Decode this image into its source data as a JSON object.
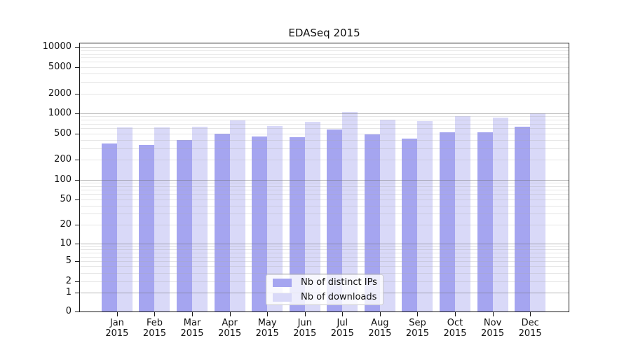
{
  "title": "EDASeq 2015",
  "chart_data": {
    "type": "bar",
    "title": "EDASeq 2015",
    "yscale": "log10(1+x)",
    "ylim": [
      0,
      10000
    ],
    "grid": "horizontal major (powers of 10) + minor (2-9 per decade)",
    "legend_position": "inside plot, lower center",
    "categories": [
      "Jan",
      "Feb",
      "Mar",
      "Apr",
      "May",
      "Jun",
      "Jul",
      "Aug",
      "Sep",
      "Oct",
      "Nov",
      "Dec"
    ],
    "year": "2015",
    "yticks": [
      10000,
      5000,
      2000,
      1000,
      500,
      200,
      100,
      50,
      20,
      10,
      5,
      2,
      1,
      0
    ],
    "series": [
      {
        "name": "Nb of distinct IPs",
        "color": "#a5a5f0",
        "values": [
          350,
          332,
          400,
          495,
          450,
          440,
          570,
          480,
          420,
          525,
          522,
          635
        ]
      },
      {
        "name": "Nb of downloads",
        "color": "#d9d9f8",
        "values": [
          620,
          610,
          625,
          795,
          655,
          755,
          1050,
          800,
          765,
          900,
          860,
          1010
        ]
      }
    ]
  },
  "colors": {
    "background": "#ffffff",
    "spine": "#1a1a1a",
    "text": "#111111",
    "major_grid": "#b3b3b3",
    "minor_grid": "#e2e2e2",
    "legend_border": "#cccccc"
  }
}
